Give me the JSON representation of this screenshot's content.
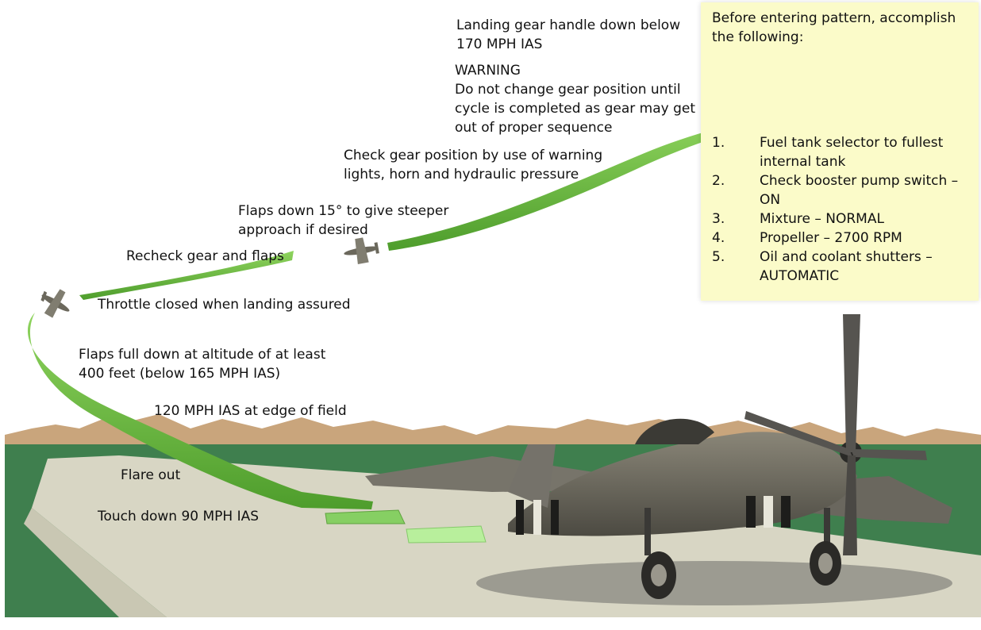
{
  "annotations": {
    "gear_handle": [
      "Landing gear handle down below",
      "170 MPH IAS"
    ],
    "warning_title": "WARNING",
    "warning_text": [
      "Do not change gear position until",
      "cycle is completed as gear may get",
      "out of proper sequence"
    ],
    "check_gear": [
      "Check gear position by use of warning",
      "lights, horn and hydraulic pressure"
    ],
    "flaps_15": [
      "Flaps down 15° to give steeper",
      "approach if desired"
    ],
    "recheck": "Recheck gear and flaps",
    "throttle": "Throttle closed when landing assured",
    "flaps_full": [
      "Flaps full down at altitude of at least",
      "400 feet (below 165 MPH IAS)"
    ],
    "edge_speed": "120 MPH IAS at edge of field",
    "flare": "Flare out",
    "touchdown": "Touch down 90 MPH IAS"
  },
  "checklist": {
    "intro": [
      "Before entering pattern, accomplish",
      "the following:"
    ],
    "items": [
      {
        "num": "1.",
        "text": "Fuel tank selector to fullest internal tank"
      },
      {
        "num": "2.",
        "text": "Check booster pump switch – ON"
      },
      {
        "num": "3.",
        "text": "Mixture – NORMAL"
      },
      {
        "num": "4.",
        "text": "Propeller – 2700 RPM"
      },
      {
        "num": "5.",
        "text": "Oil and coolant shutters – AUTOMATIC"
      }
    ]
  },
  "colors": {
    "path_green": "#6cbf3f",
    "touchdown_green": "#b9f0a0",
    "checklist_bg": "#fbfbc9",
    "grass": "#3d7d4d",
    "runway": "#d7d5c3",
    "mountains": "#c9a57c"
  },
  "icons": [
    "aircraft-silhouette",
    "p51-mustang-illustration"
  ]
}
